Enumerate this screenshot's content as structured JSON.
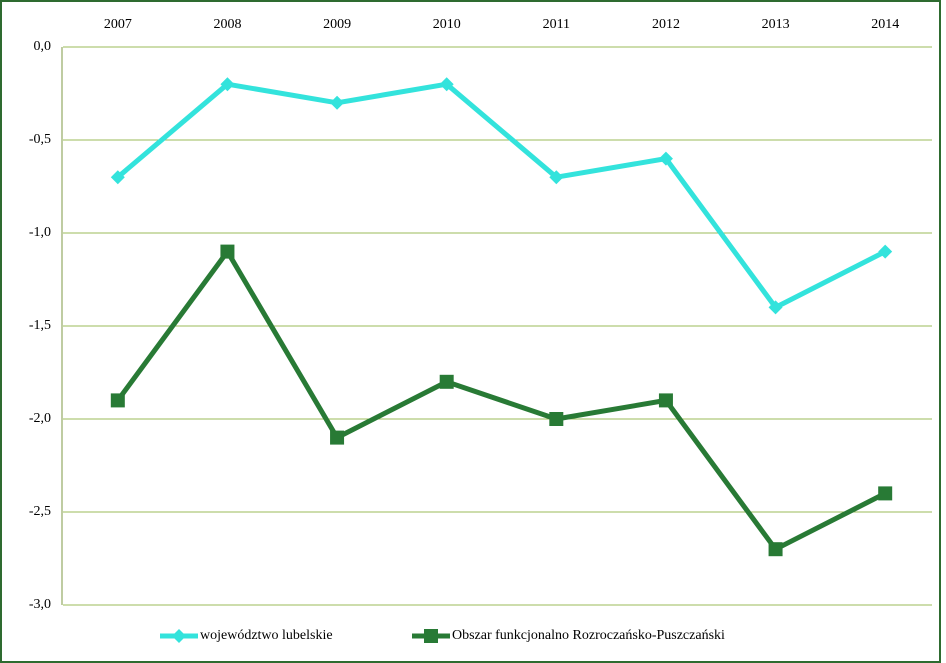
{
  "chart_data": {
    "type": "line",
    "categories": [
      "2007",
      "2008",
      "2009",
      "2010",
      "2011",
      "2012",
      "2013",
      "2014"
    ],
    "series": [
      {
        "name": "województwo lubelskie",
        "color": "#33e3dc",
        "marker": "diamond",
        "values": [
          -0.7,
          -0.2,
          -0.3,
          -0.2,
          -0.7,
          -0.6,
          -1.4,
          -1.1
        ]
      },
      {
        "name": "Obszar funkcjonalno Rozroczańsko-Puszczański",
        "color": "#287a35",
        "marker": "square",
        "values": [
          -1.9,
          -1.1,
          -2.1,
          -1.8,
          -2.0,
          -1.9,
          -2.7,
          -2.4
        ]
      }
    ],
    "ylim": [
      -3.0,
      0.0
    ],
    "yticks": [
      {
        "value": 0.0,
        "label": "0,0"
      },
      {
        "value": -0.5,
        "label": "-0,5"
      },
      {
        "value": -1.0,
        "label": "-1,0"
      },
      {
        "value": -1.5,
        "label": "-1,5"
      },
      {
        "value": -2.0,
        "label": "-2,0"
      },
      {
        "value": -2.5,
        "label": "-2,5"
      },
      {
        "value": -3.0,
        "label": "-3,0"
      }
    ],
    "grid": true,
    "legend": "bottom"
  }
}
